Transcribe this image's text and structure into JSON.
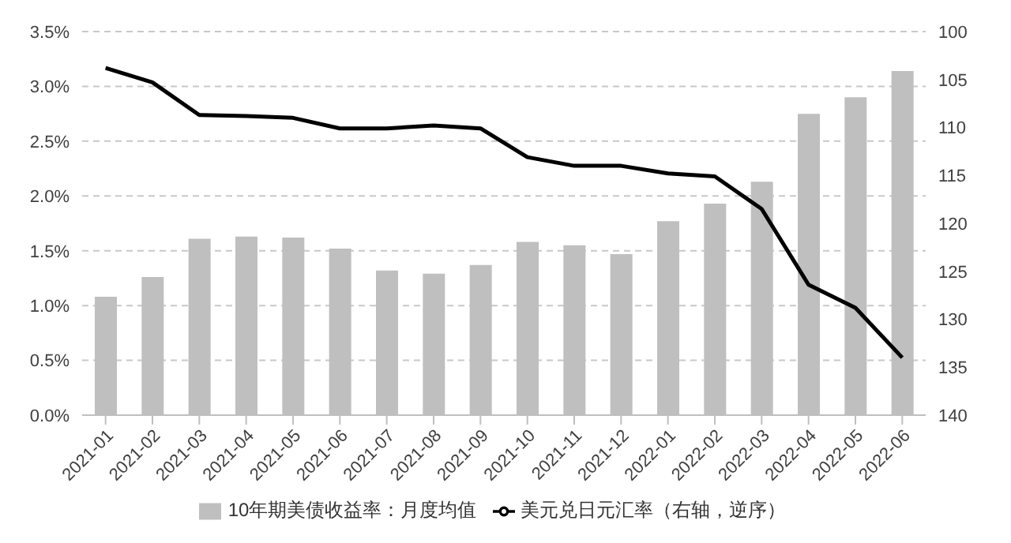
{
  "chart_data": {
    "type": "bar",
    "categories": [
      "2021-01",
      "2021-02",
      "2021-03",
      "2021-04",
      "2021-05",
      "2021-06",
      "2021-07",
      "2021-08",
      "2021-09",
      "2021-10",
      "2021-11",
      "2021-12",
      "2022-01",
      "2022-02",
      "2022-03",
      "2022-04",
      "2022-05",
      "2022-06"
    ],
    "series": [
      {
        "name": "10年期美债收益率：月度均值",
        "color": "#bfbfbf",
        "values": [
          1.08,
          1.26,
          1.61,
          1.63,
          1.62,
          1.52,
          1.32,
          1.29,
          1.37,
          1.58,
          1.55,
          1.47,
          1.77,
          1.93,
          2.13,
          2.75,
          2.9,
          3.14
        ]
      },
      {
        "name": "美元兑日元汇率（右轴，逆序）",
        "type": "line",
        "axis": "y2",
        "color": "#000000",
        "values": [
          103.8,
          105.3,
          108.7,
          108.8,
          109.0,
          110.1,
          110.1,
          109.8,
          110.1,
          113.1,
          114.0,
          114.0,
          114.8,
          115.1,
          118.5,
          126.4,
          128.8,
          134.0
        ]
      }
    ],
    "ylim": [
      0,
      3.5
    ],
    "yticks": [
      {
        "value": 0,
        "label": "0.0%"
      },
      {
        "value": 0.5,
        "label": "0.5%"
      },
      {
        "value": 1,
        "label": "1.0%"
      },
      {
        "value": 1.5,
        "label": "1.5%"
      },
      {
        "value": 2,
        "label": "2.0%"
      },
      {
        "value": 2.5,
        "label": "2.5%"
      },
      {
        "value": 3,
        "label": "3.0%"
      },
      {
        "value": 3.5,
        "label": "3.5%"
      }
    ],
    "y2lim": [
      140,
      100
    ],
    "y2ticks": [
      100,
      105,
      110,
      115,
      120,
      125,
      130,
      135,
      140
    ],
    "grid": "y",
    "legend": "bottom",
    "marker": "none",
    "line_style": "solid"
  }
}
